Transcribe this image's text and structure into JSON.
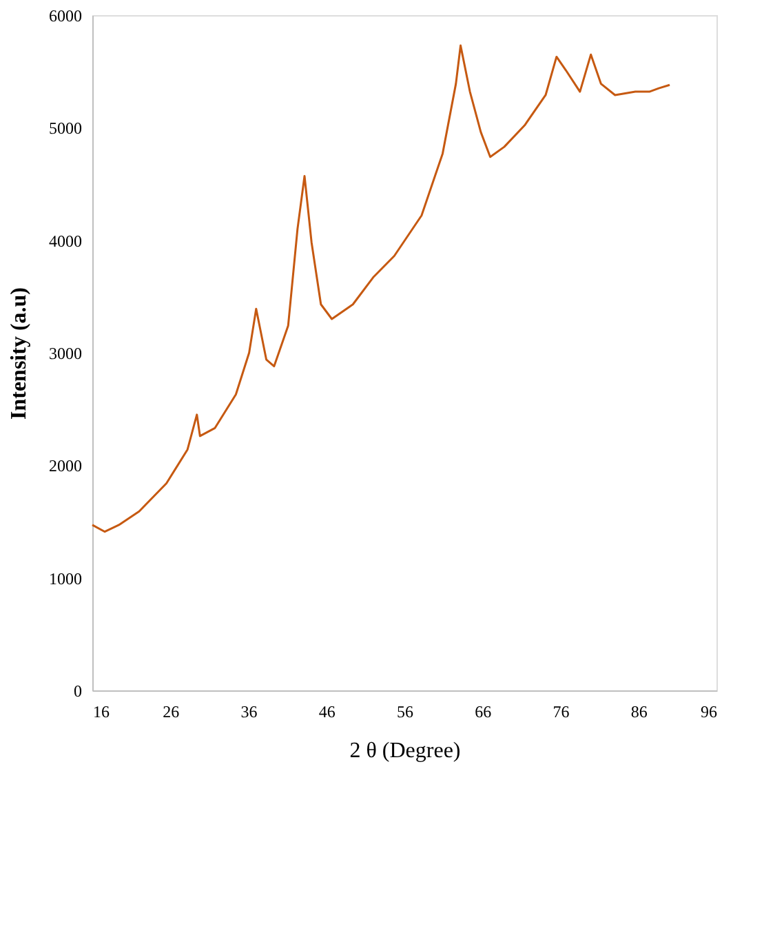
{
  "chart_data": {
    "type": "line",
    "xlabel": "2 θ (Degree)",
    "ylabel": "Intensity (a.u)",
    "xlim": [
      16,
      96
    ],
    "xticks": [
      16,
      26,
      36,
      46,
      56,
      66,
      76,
      86,
      96
    ],
    "ylim": [
      0,
      6000
    ],
    "yticks": [
      0,
      1000,
      2000,
      3000,
      4000,
      5000,
      6000
    ],
    "grid": false,
    "legend": false,
    "line_style": "solid",
    "x": [
      16,
      17.6,
      19.4,
      22,
      25.5,
      28.2,
      29.4,
      29.8,
      31.7,
      34.4,
      36.1,
      37,
      38.3,
      39.3,
      41.1,
      42.3,
      43.2,
      44.1,
      45.3,
      46.7,
      49.4,
      52,
      54.7,
      58.2,
      60.9,
      62.6,
      63.2,
      64.4,
      65.8,
      67,
      68.8,
      71.4,
      74.1,
      75.5,
      76.7,
      78.5,
      79.9,
      81.2,
      83,
      85.6,
      87.4,
      88.6,
      90
    ],
    "series": [
      {
        "color": "#c65911",
        "values": [
          1470,
          1410,
          1470,
          1590,
          1840,
          2140,
          2450,
          2260,
          2330,
          2630,
          3000,
          3390,
          2940,
          2880,
          3240,
          4100,
          4570,
          3980,
          3430,
          3300,
          3430,
          3670,
          3860,
          4220,
          4770,
          5390,
          5730,
          5320,
          4960,
          4740,
          4830,
          5020,
          5290,
          5630,
          5510,
          5320,
          5650,
          5390,
          5290,
          5320,
          5320,
          5350,
          5380
        ]
      }
    ]
  }
}
